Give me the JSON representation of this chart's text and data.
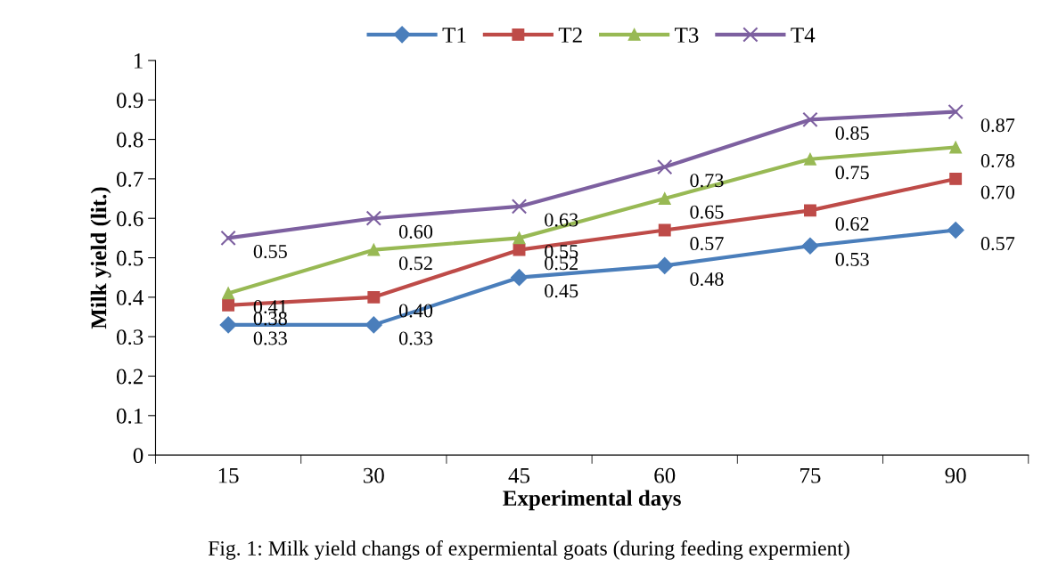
{
  "chart_data": {
    "type": "line",
    "xlabel": "Experimental days",
    "ylabel": "Milk yield (lit.)",
    "categories": [
      "15",
      "30",
      "45",
      "60",
      "75",
      "90"
    ],
    "series": [
      {
        "name": "T1",
        "color": "#4a7ebb",
        "marker": "diamond",
        "values": [
          0.33,
          0.33,
          0.45,
          0.48,
          0.53,
          0.57
        ],
        "value_labels": [
          "0.33",
          "0.33",
          "0.45",
          "0.48",
          "0.53",
          "0.57"
        ]
      },
      {
        "name": "T2",
        "color": "#be4b48",
        "marker": "square",
        "values": [
          0.38,
          0.4,
          0.52,
          0.57,
          0.62,
          0.7
        ],
        "value_labels": [
          "0.38",
          "0.40",
          "0.52",
          "0.57",
          "0.62",
          "0.70"
        ]
      },
      {
        "name": "T3",
        "color": "#98b954",
        "marker": "triangle",
        "values": [
          0.41,
          0.52,
          0.55,
          0.65,
          0.75,
          0.78
        ],
        "value_labels": [
          "0.41",
          "0.52",
          "0.55",
          "0.65",
          "0.75",
          "0.78"
        ]
      },
      {
        "name": "T4",
        "color": "#7d60a0",
        "marker": "cross",
        "values": [
          0.55,
          0.6,
          0.63,
          0.73,
          0.85,
          0.87
        ],
        "value_labels": [
          "0.55",
          "0.60",
          "0.63",
          "0.73",
          "0.85",
          "0.87"
        ]
      }
    ],
    "ylim": [
      0,
      1
    ],
    "yticks": [
      0,
      0.1,
      0.2,
      0.3,
      0.4,
      0.5,
      0.6,
      0.7,
      0.8,
      0.9,
      1
    ],
    "grid": false,
    "legend": "top",
    "line_style": "solid",
    "annotations": [
      "Fig. 1: Milk yield changs of expermiental goats (during feeding expermient)"
    ]
  }
}
